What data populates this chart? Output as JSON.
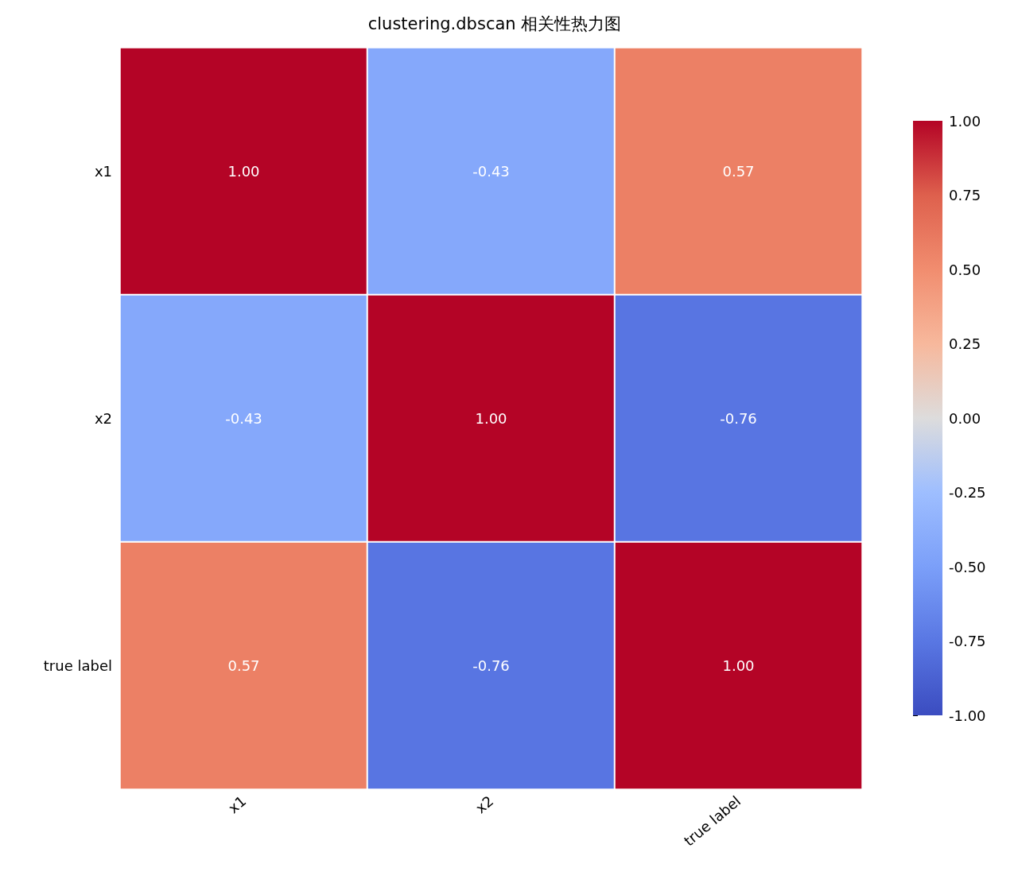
{
  "chart_data": {
    "type": "heatmap",
    "title": "clustering.dbscan 相关性热力图",
    "categories": [
      "x1",
      "x2",
      "true label"
    ],
    "y_categories": [
      "x1",
      "x2",
      "true label"
    ],
    "cells": [
      [
        1,
        -0.43,
        0.57
      ],
      [
        -0.43,
        1,
        -0.76
      ],
      [
        0.57,
        -0.76,
        1
      ]
    ],
    "cell_labels": [
      [
        "1.00",
        "-0.43",
        "0.57"
      ],
      [
        "-0.43",
        "1.00",
        "-0.76"
      ],
      [
        "0.57",
        "-0.76",
        "1.00"
      ]
    ],
    "clim": [
      -1,
      1
    ],
    "cticks": [
      {
        "value": -1,
        "label": "-1.00"
      },
      {
        "value": -0.75,
        "label": "-0.75"
      },
      {
        "value": -0.5,
        "label": "-0.50"
      },
      {
        "value": -0.25,
        "label": "-0.25"
      },
      {
        "value": 0,
        "label": "0.00"
      },
      {
        "value": 0.25,
        "label": "0.25"
      },
      {
        "value": 0.5,
        "label": "0.50"
      },
      {
        "value": 0.75,
        "label": "0.75"
      },
      {
        "value": 1,
        "label": "1.00"
      }
    ]
  }
}
